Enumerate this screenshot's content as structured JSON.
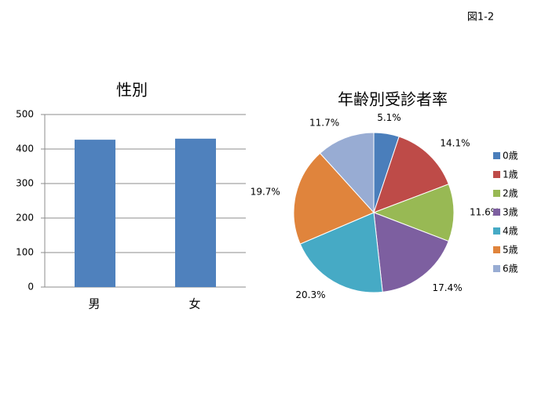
{
  "figure_label": "図1-2",
  "chart_data": [
    {
      "type": "bar",
      "title": "性別",
      "categories": [
        "男",
        "女"
      ],
      "values": [
        427,
        430
      ],
      "color": "#4f81bd",
      "ylim": [
        0,
        500
      ],
      "yticks": [
        0,
        100,
        200,
        300,
        400,
        500
      ],
      "grid": true
    },
    {
      "type": "pie",
      "title": "年齢別受診者率",
      "categories": [
        "0歳",
        "1歳",
        "2歳",
        "3歳",
        "4歳",
        "5歳",
        "6歳"
      ],
      "values": [
        5.1,
        14.1,
        11.6,
        17.4,
        20.3,
        19.7,
        11.7
      ],
      "value_labels": [
        "5.1%",
        "14.1%",
        "11.6%",
        "17.4%",
        "20.3%",
        "19.7%",
        "11.7%"
      ],
      "colors": [
        "#4a7ebb",
        "#be4b48",
        "#98b954",
        "#7d5fa0",
        "#46aac5",
        "#e0843c",
        "#98acd3"
      ],
      "legend": "right"
    }
  ]
}
